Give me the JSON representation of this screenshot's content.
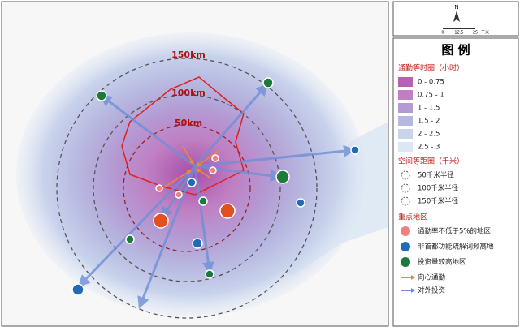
{
  "map": {
    "ring_labels": [
      "150km",
      "100km",
      "50km"
    ]
  },
  "compass": {
    "north": "N",
    "scale_labels": [
      "0",
      "12.5",
      "25",
      "千米"
    ]
  },
  "legend": {
    "title": "图 例",
    "isochrone": {
      "heading": "通勤等时圈（小时）",
      "items": [
        {
          "label": "0 - 0.75",
          "color": "#b562b5"
        },
        {
          "label": "0.75 - 1",
          "color": "#c07fc3"
        },
        {
          "label": "1 - 1.5",
          "color": "#b49ad3"
        },
        {
          "label": "1.5 - 2",
          "color": "#b7b8e0"
        },
        {
          "label": "2 - 2.5",
          "color": "#c9d3ec"
        },
        {
          "label": "2.5 - 3",
          "color": "#dde6f4"
        }
      ]
    },
    "distance": {
      "heading": "空间等距圈（千米）",
      "items": [
        "50千米半径",
        "100千米半径",
        "150千米半径"
      ]
    },
    "key_areas": {
      "heading": "重点地区",
      "items": [
        {
          "label": "通勤率不低于5%的地区",
          "color": "#f08080"
        },
        {
          "label": "非首都功能疏解词频高地",
          "color": "#1f6bb5"
        },
        {
          "label": "投资量较高地区",
          "color": "#1e7a3a"
        }
      ]
    },
    "flows": [
      {
        "label": "向心通勤",
        "color": "#f08a2c"
      },
      {
        "label": "对外投资",
        "color": "#6f8fd6"
      }
    ]
  }
}
